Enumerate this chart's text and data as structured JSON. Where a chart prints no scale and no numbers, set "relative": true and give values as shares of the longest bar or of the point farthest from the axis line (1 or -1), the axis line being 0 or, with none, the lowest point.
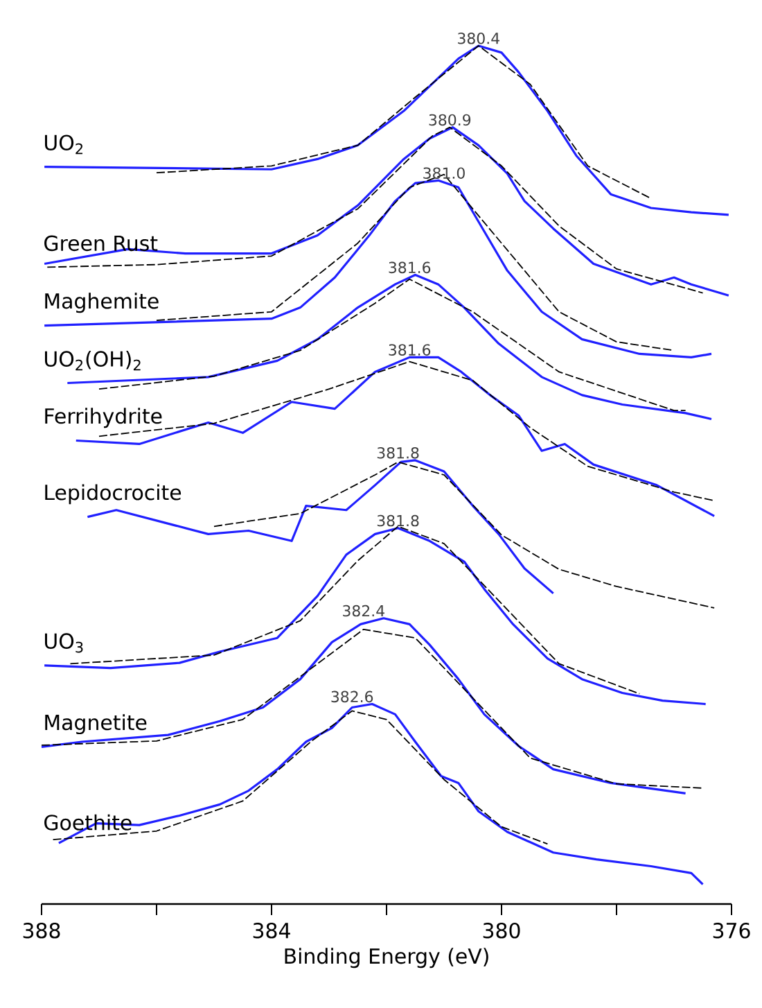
{
  "chart_data": {
    "type": "line",
    "relative": true,
    "xlabel": "Binding Energy (eV)",
    "xlim": [
      388,
      376
    ],
    "xticks": [
      388,
      {
        "value": 386,
        "label": null
      },
      384,
      {
        "value": 382,
        "label": null
      },
      380,
      {
        "value": 378,
        "label": null
      },
      376
    ],
    "tick_labels": "x",
    "grid": false,
    "marker": "none",
    "series": [
      {
        "name": "UO$_{2}$",
        "color": "#2020ff",
        "line_style": "solid",
        "x": [
          387.95,
          384.0,
          383.2,
          382.5,
          381.7,
          381.2,
          380.75,
          380.4,
          380.0,
          379.7,
          379.2,
          378.7,
          378.1,
          377.4,
          376.7,
          376.05
        ],
        "values": [
          0.859,
          0.856,
          0.868,
          0.884,
          0.924,
          0.956,
          0.985,
          1.0,
          0.992,
          0.969,
          0.924,
          0.872,
          0.827,
          0.811,
          0.806,
          0.803
        ]
      },
      {
        "name": "Green Rust",
        "color": "#2020ff",
        "line_style": "solid",
        "x": [
          387.95,
          386.5,
          385.5,
          384.0,
          383.2,
          382.5,
          381.7,
          381.25,
          380.85,
          380.4,
          379.9,
          379.6,
          379.1,
          378.4,
          377.4,
          377.0,
          376.7,
          376.05
        ],
        "values": [
          0.746,
          0.763,
          0.758,
          0.758,
          0.779,
          0.814,
          0.868,
          0.892,
          0.905,
          0.884,
          0.851,
          0.819,
          0.787,
          0.746,
          0.722,
          0.73,
          0.722,
          0.709
        ]
      },
      {
        "name": "Maghemite",
        "color": "#2020ff",
        "line_style": "solid",
        "x": [
          387.95,
          384.0,
          383.5,
          382.9,
          382.3,
          381.85,
          381.5,
          381.1,
          380.75,
          380.4,
          379.9,
          379.3,
          378.6,
          377.6,
          376.7,
          376.35
        ],
        "values": [
          0.674,
          0.682,
          0.695,
          0.73,
          0.779,
          0.819,
          0.84,
          0.843,
          0.835,
          0.795,
          0.738,
          0.69,
          0.658,
          0.641,
          0.637,
          0.641
        ]
      },
      {
        "name": "UO$_{2}$(OH)$_{2}$",
        "color": "#2020ff",
        "line_style": "solid",
        "x": [
          387.55,
          385.1,
          383.9,
          383.2,
          382.5,
          381.85,
          381.5,
          381.1,
          380.65,
          380.05,
          379.3,
          378.6,
          377.9,
          376.8,
          376.35
        ],
        "values": [
          0.607,
          0.614,
          0.633,
          0.658,
          0.695,
          0.722,
          0.733,
          0.722,
          0.695,
          0.653,
          0.614,
          0.593,
          0.582,
          0.572,
          0.565
        ]
      },
      {
        "name": "Ferrihydrite",
        "color": "#2020ff",
        "line_style": "solid",
        "x": [
          387.4,
          386.3,
          385.1,
          384.5,
          383.65,
          382.9,
          382.2,
          381.6,
          381.1,
          380.7,
          380.2,
          379.7,
          379.3,
          378.9,
          378.4,
          377.3,
          376.3
        ],
        "values": [
          0.54,
          0.536,
          0.561,
          0.549,
          0.585,
          0.577,
          0.62,
          0.637,
          0.637,
          0.62,
          0.593,
          0.569,
          0.528,
          0.536,
          0.512,
          0.488,
          0.452
        ]
      },
      {
        "name": "Lepidocrocite",
        "color": "#2020ff",
        "line_style": "solid",
        "x": [
          387.2,
          386.7,
          385.1,
          384.4,
          383.65,
          383.4,
          382.7,
          382.2,
          381.75,
          381.5,
          381.0,
          380.5,
          380.05,
          379.6,
          379.1
        ],
        "values": [
          0.451,
          0.459,
          0.431,
          0.435,
          0.423,
          0.464,
          0.459,
          0.488,
          0.515,
          0.517,
          0.504,
          0.464,
          0.431,
          0.391,
          0.362
        ]
      },
      {
        "name": "UO$_{3}$",
        "color": "#2020ff",
        "line_style": "solid",
        "x": [
          387.95,
          386.8,
          385.6,
          384.9,
          383.9,
          383.2,
          382.7,
          382.2,
          381.8,
          381.25,
          380.65,
          380.3,
          379.8,
          379.2,
          378.6,
          377.9,
          377.2,
          376.45
        ],
        "values": [
          0.278,
          0.275,
          0.281,
          0.294,
          0.31,
          0.359,
          0.407,
          0.431,
          0.438,
          0.423,
          0.399,
          0.367,
          0.326,
          0.286,
          0.262,
          0.246,
          0.237,
          0.233
        ]
      },
      {
        "name": "Magnetite",
        "color": "#2020ff",
        "line_style": "solid",
        "x": [
          388.0,
          387.3,
          385.8,
          384.9,
          384.15,
          383.5,
          382.95,
          382.45,
          382.05,
          381.6,
          381.25,
          380.75,
          380.3,
          379.7,
          379.1,
          378.1,
          376.8
        ],
        "values": [
          0.183,
          0.189,
          0.197,
          0.213,
          0.229,
          0.262,
          0.305,
          0.326,
          0.333,
          0.326,
          0.302,
          0.262,
          0.221,
          0.184,
          0.157,
          0.141,
          0.129
        ]
      },
      {
        "name": "Goethite",
        "color": "#2020ff",
        "line_style": "solid",
        "x": [
          387.7,
          387.05,
          386.3,
          385.6,
          384.9,
          384.4,
          383.9,
          383.4,
          382.95,
          382.6,
          382.25,
          381.85,
          381.5,
          381.05,
          380.75,
          380.4,
          379.9,
          379.1,
          378.35,
          377.4,
          376.7,
          376.5
        ],
        "values": [
          0.071,
          0.094,
          0.092,
          0.103,
          0.116,
          0.132,
          0.157,
          0.189,
          0.205,
          0.229,
          0.233,
          0.221,
          0.189,
          0.149,
          0.141,
          0.108,
          0.084,
          0.06,
          0.052,
          0.044,
          0.036,
          0.023
        ]
      },
      {
        "color": "#000000",
        "line_style": "dashed",
        "x": [
          386,
          384,
          382.5,
          381.5,
          380.4,
          379.5,
          378.5,
          377.4
        ],
        "values": [
          0.852,
          0.86,
          0.884,
          0.94,
          1.0,
          0.955,
          0.86,
          0.822
        ]
      },
      {
        "color": "#000000",
        "line_style": "dashed",
        "x": [
          387.9,
          386,
          384,
          382.5,
          381.2,
          380.9,
          380,
          379,
          378,
          376.5
        ],
        "values": [
          0.742,
          0.745,
          0.755,
          0.81,
          0.895,
          0.905,
          0.86,
          0.79,
          0.74,
          0.712
        ]
      },
      {
        "color": "#000000",
        "line_style": "dashed",
        "x": [
          386,
          384,
          382.5,
          381.6,
          381.0,
          380,
          379,
          378,
          377
        ],
        "values": [
          0.68,
          0.69,
          0.77,
          0.835,
          0.85,
          0.77,
          0.69,
          0.655,
          0.645
        ]
      },
      {
        "color": "#000000",
        "line_style": "dashed",
        "x": [
          387,
          385,
          383.5,
          382.2,
          381.6,
          380.5,
          379,
          377,
          376.8
        ],
        "values": [
          0.6,
          0.615,
          0.645,
          0.7,
          0.728,
          0.69,
          0.62,
          0.575,
          0.575
        ]
      },
      {
        "color": "#000000",
        "line_style": "dashed",
        "x": [
          387,
          385,
          383,
          381.6,
          380.5,
          379.5,
          378.5,
          377,
          376.3
        ],
        "values": [
          0.545,
          0.56,
          0.6,
          0.632,
          0.61,
          0.555,
          0.51,
          0.48,
          0.47
        ]
      },
      {
        "color": "#000000",
        "line_style": "dashed",
        "x": [
          385,
          383.5,
          382.2,
          381.8,
          381,
          380,
          379,
          378,
          376.3
        ],
        "values": [
          0.44,
          0.455,
          0.5,
          0.515,
          0.5,
          0.43,
          0.39,
          0.37,
          0.345
        ]
      },
      {
        "color": "#000000",
        "line_style": "dashed",
        "x": [
          387.5,
          385,
          383.5,
          382.5,
          381.8,
          381,
          380,
          379,
          377.6
        ],
        "values": [
          0.28,
          0.29,
          0.33,
          0.4,
          0.44,
          0.42,
          0.35,
          0.28,
          0.245
        ]
      },
      {
        "color": "#000000",
        "line_style": "dashed",
        "x": [
          388,
          386,
          384.5,
          383,
          382.4,
          381.5,
          380.5,
          379.5,
          378,
          376.5
        ],
        "values": [
          0.185,
          0.19,
          0.215,
          0.29,
          0.32,
          0.31,
          0.24,
          0.17,
          0.14,
          0.135
        ]
      },
      {
        "color": "#000000",
        "line_style": "dashed",
        "x": [
          387.8,
          386,
          384.5,
          383.3,
          382.6,
          382,
          381,
          380,
          379.2
        ],
        "values": [
          0.075,
          0.085,
          0.12,
          0.19,
          0.225,
          0.215,
          0.145,
          0.09,
          0.07
        ]
      }
    ],
    "annotations": [
      {
        "text": "380.4",
        "x": 380.4,
        "y": 1.0
      },
      {
        "text": "380.9",
        "x": 380.9,
        "y": 0.905
      },
      {
        "text": "381.0",
        "x": 381.0,
        "y": 0.843
      },
      {
        "text": "381.6",
        "x": 381.6,
        "y": 0.733
      },
      {
        "text": "381.6",
        "x": 381.6,
        "y": 0.637
      },
      {
        "text": "381.8",
        "x": 381.8,
        "y": 0.517
      },
      {
        "text": "381.8",
        "x": 381.8,
        "y": 0.438
      },
      {
        "text": "382.4",
        "x": 382.4,
        "y": 0.333
      },
      {
        "text": "382.6",
        "x": 382.6,
        "y": 0.233
      }
    ]
  }
}
